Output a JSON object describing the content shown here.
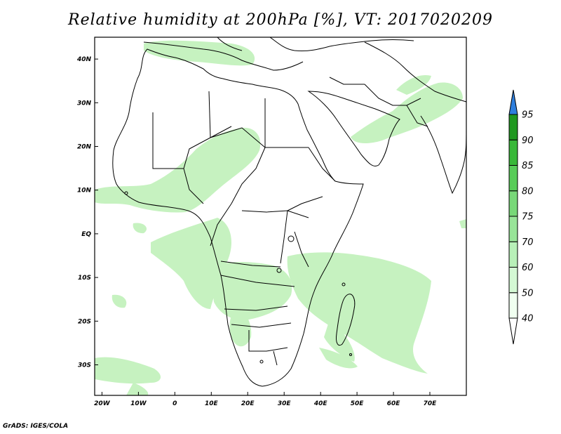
{
  "title": "Relative humidity at 200hPa [%], VT: 2017020209",
  "credit": "GrADS: IGES/COLA",
  "map": {
    "projection": "lat-lon",
    "lon_range": [
      -22,
      80
    ],
    "lat_range": [
      -37,
      45
    ],
    "x_ticks": [
      "20W",
      "10W",
      "0",
      "10E",
      "20E",
      "30E",
      "40E",
      "50E",
      "60E",
      "70E"
    ],
    "y_ticks": [
      "40N",
      "30N",
      "20N",
      "10N",
      "EQ",
      "10S",
      "20S",
      "30S"
    ],
    "coastline_color": "#000000"
  },
  "colorbar": {
    "levels": [
      "40",
      "50",
      "60",
      "70",
      "75",
      "80",
      "85",
      "90",
      "95"
    ],
    "colors": [
      "#f0fff0",
      "#d4f8d4",
      "#b8f0b8",
      "#98e498",
      "#78d878",
      "#58cc58",
      "#38b838",
      "#209820"
    ],
    "over_color": "#2f7fdd",
    "triangles": "both"
  },
  "field_color": "#c6f2c0"
}
